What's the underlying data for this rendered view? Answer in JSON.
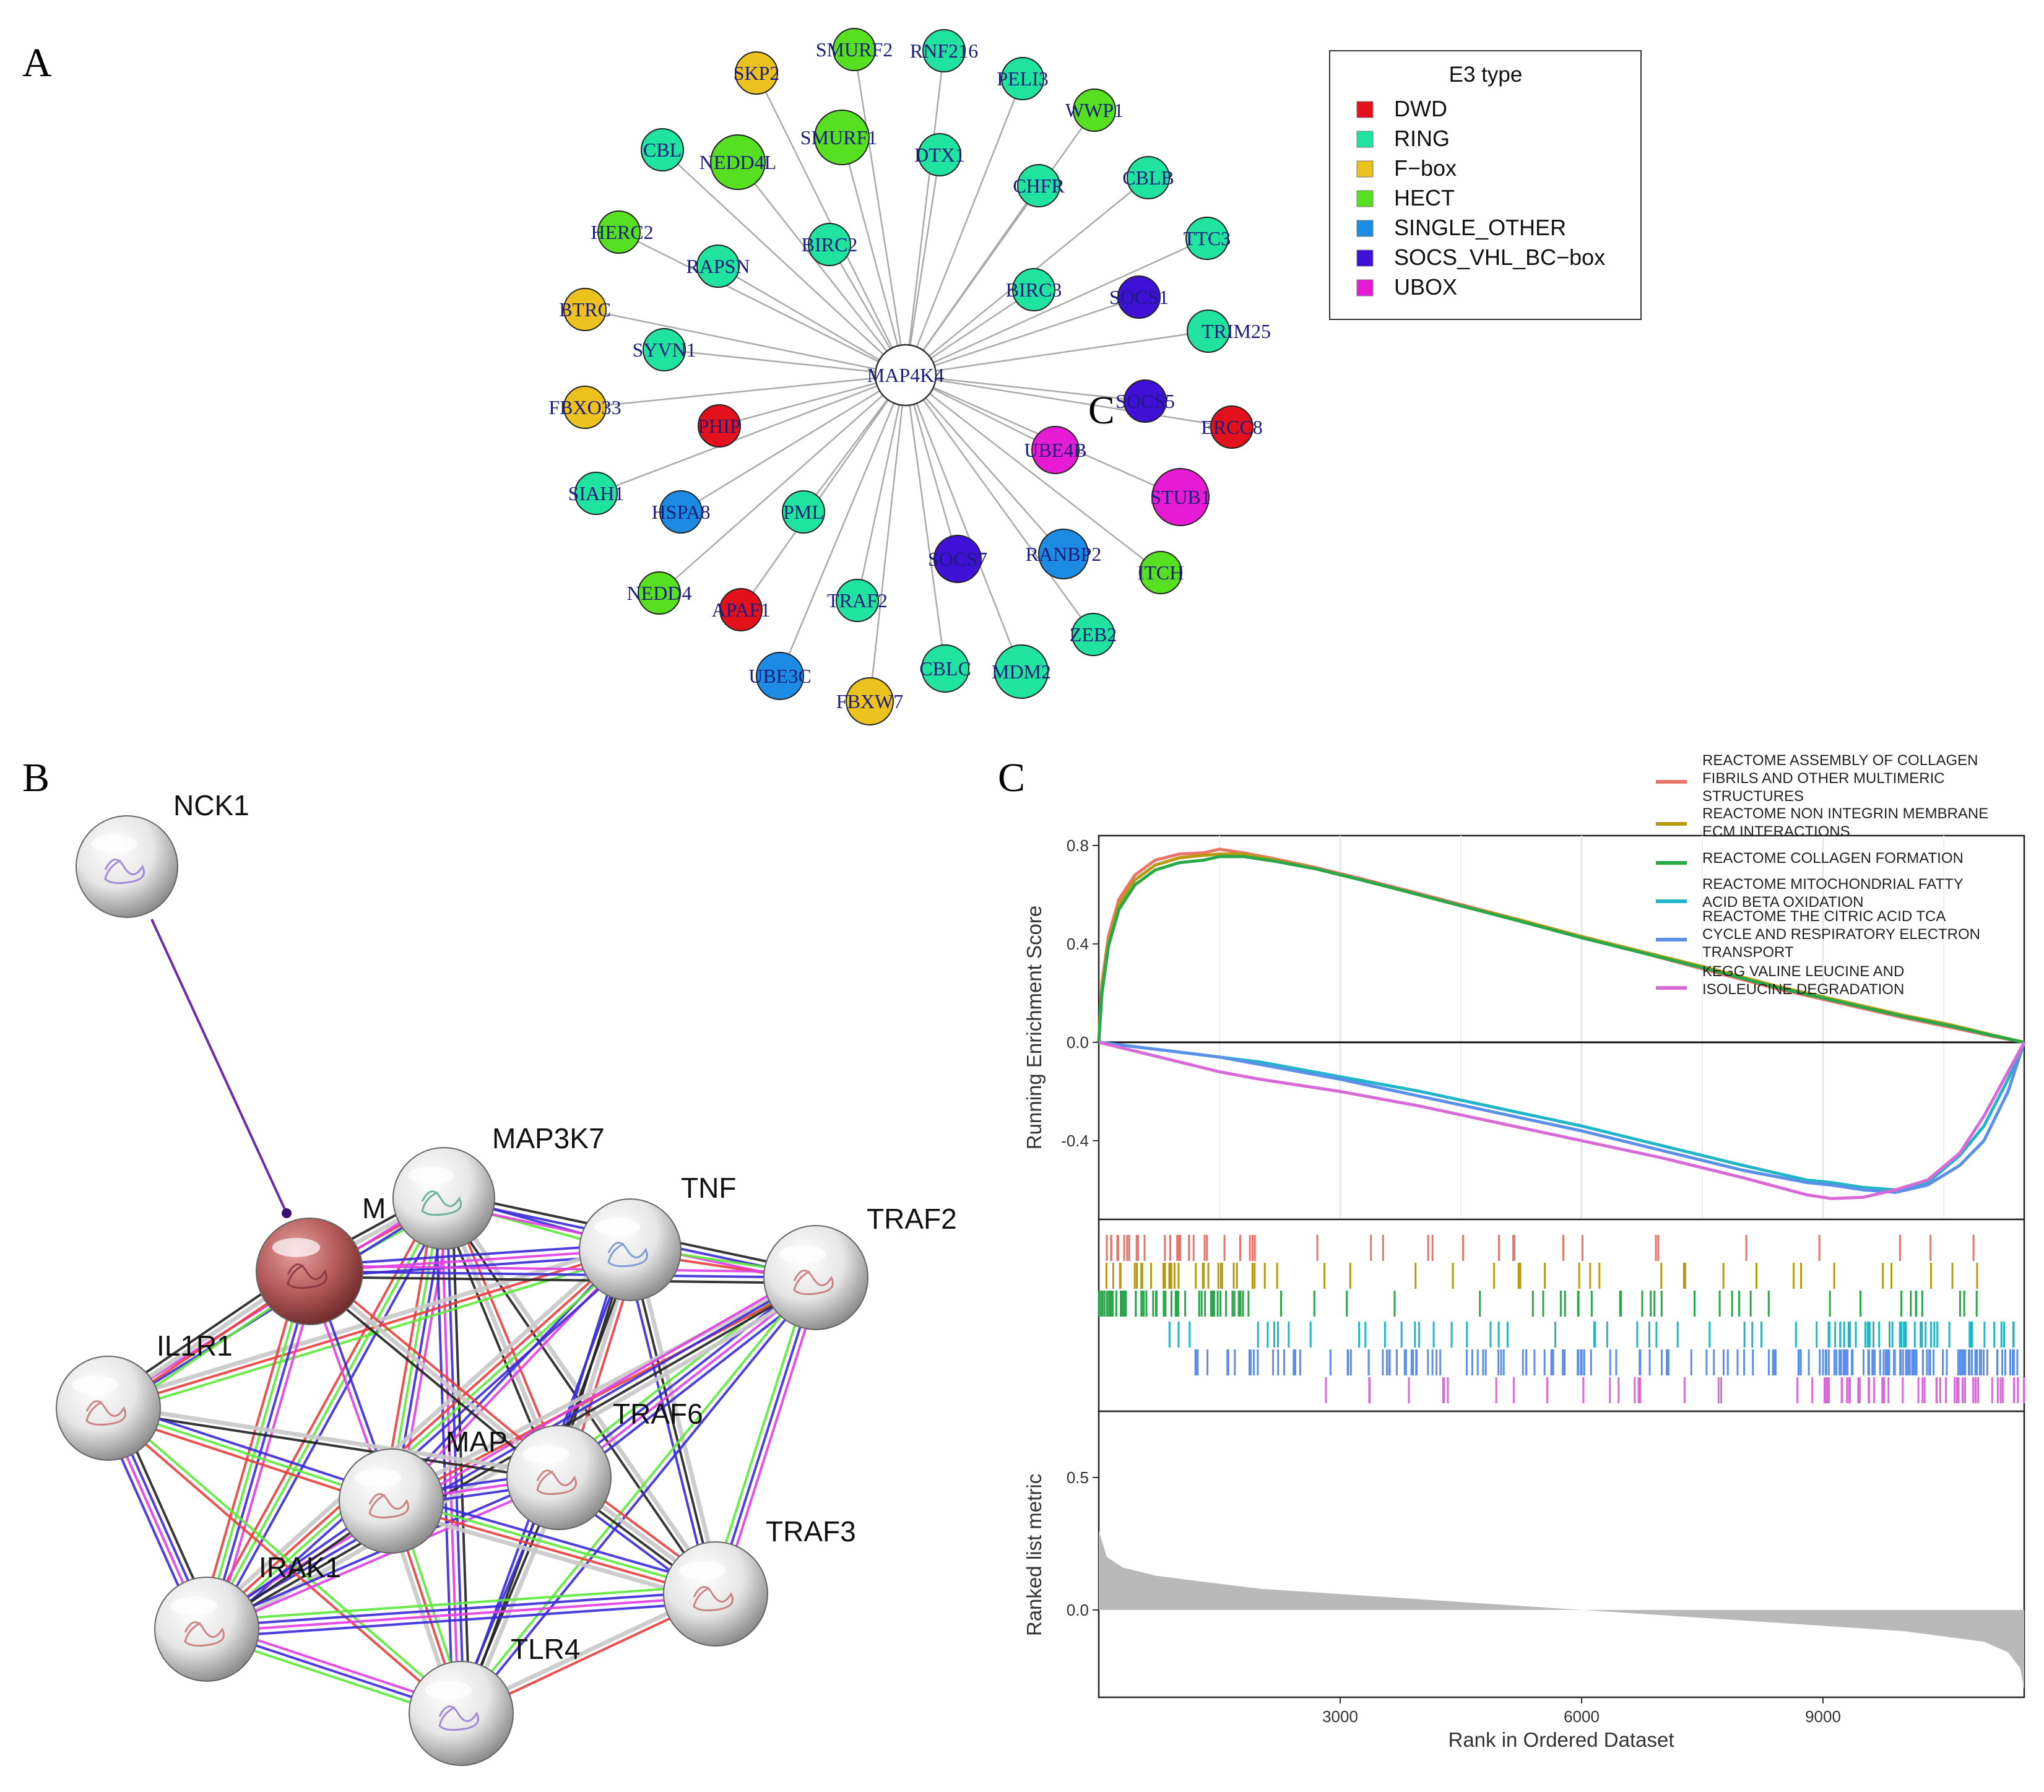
{
  "panel_labels": {
    "a": "A",
    "b": "B",
    "c": "C"
  },
  "panel_a": {
    "center": "MAP4K4",
    "legend": {
      "title": "E3 type",
      "items": [
        {
          "key": "DWD",
          "label": "DWD",
          "color": "#e3111c"
        },
        {
          "key": "RING",
          "label": "RING",
          "color": "#20e3a0"
        },
        {
          "key": "FBOX",
          "label": "F−box",
          "color": "#ecc21f"
        },
        {
          "key": "HECT",
          "label": "HECT",
          "color": "#57e021"
        },
        {
          "key": "SINGLE",
          "label": "SINGLE_OTHER",
          "color": "#1b8be3"
        },
        {
          "key": "SOCS",
          "label": "SOCS_VHL_BC−box",
          "color": "#3f10d6"
        },
        {
          "key": "UBOX",
          "label": "UBOX",
          "color": "#e61bd3"
        }
      ]
    },
    "stray_glyph": "C",
    "nodes": [
      {
        "label": "SMURF2",
        "type": "HECT"
      },
      {
        "label": "RNF216",
        "type": "RING"
      },
      {
        "label": "PELI3",
        "type": "RING"
      },
      {
        "label": "WWP1",
        "type": "HECT"
      },
      {
        "label": "SKP2",
        "type": "FBOX"
      },
      {
        "label": "SMURF1",
        "type": "HECT"
      },
      {
        "label": "CBL",
        "type": "RING"
      },
      {
        "label": "NEDD4L",
        "type": "HECT"
      },
      {
        "label": "DTX1",
        "type": "RING"
      },
      {
        "label": "CHFR",
        "type": "RING"
      },
      {
        "label": "CBLB",
        "type": "RING"
      },
      {
        "label": "HERC2",
        "type": "HECT"
      },
      {
        "label": "BIRC2",
        "type": "RING"
      },
      {
        "label": "TTC3",
        "type": "RING"
      },
      {
        "label": "RAPSN",
        "type": "RING"
      },
      {
        "label": "BIRC3",
        "type": "RING"
      },
      {
        "label": "SOCS1",
        "type": "SOCS"
      },
      {
        "label": "BTRC",
        "type": "FBOX"
      },
      {
        "label": "TRIM25",
        "type": "RING"
      },
      {
        "label": "SYVN1",
        "type": "RING"
      },
      {
        "label": "SOCS5",
        "type": "SOCS"
      },
      {
        "label": "FBXO33",
        "type": "FBOX"
      },
      {
        "label": "PHIP",
        "type": "DWD"
      },
      {
        "label": "ERCC8",
        "type": "DWD"
      },
      {
        "label": "UBE4B",
        "type": "UBOX"
      },
      {
        "label": "STUB1",
        "type": "UBOX"
      },
      {
        "label": "SIAH1",
        "type": "RING"
      },
      {
        "label": "HSPA8",
        "type": "SINGLE"
      },
      {
        "label": "PML",
        "type": "RING"
      },
      {
        "label": "SOCS7",
        "type": "SOCS"
      },
      {
        "label": "RANBP2",
        "type": "SINGLE"
      },
      {
        "label": "ITCH",
        "type": "HECT"
      },
      {
        "label": "NEDD4",
        "type": "HECT"
      },
      {
        "label": "APAF1",
        "type": "DWD"
      },
      {
        "label": "TRAF2",
        "type": "RING"
      },
      {
        "label": "ZEB2",
        "type": "RING"
      },
      {
        "label": "UBE3C",
        "type": "SINGLE"
      },
      {
        "label": "CBLC",
        "type": "RING"
      },
      {
        "label": "MDM2",
        "type": "RING"
      },
      {
        "label": "FBXW7",
        "type": "FBOX"
      }
    ]
  },
  "panel_b": {
    "nodes": [
      {
        "id": "NCK1",
        "label": "NCK1"
      },
      {
        "id": "MAP3K7",
        "label": "MAP3K7"
      },
      {
        "id": "TNF",
        "label": "TNF"
      },
      {
        "id": "TRAF2",
        "label": "TRAF2"
      },
      {
        "id": "MAP4K4",
        "label": "M"
      },
      {
        "id": "IL1R1",
        "label": "IL1R1"
      },
      {
        "id": "TRAF6",
        "label": "TRAF6"
      },
      {
        "id": "MAP2K",
        "label": "MAP"
      },
      {
        "id": "TRAF3",
        "label": "TRAF3"
      },
      {
        "id": "IRAK1",
        "label": "IRAK1"
      },
      {
        "id": "TLR4",
        "label": "TLR4"
      }
    ],
    "edge_colors": {
      "coexpression": "#222222",
      "binding": "#3a2bd8",
      "activation": "#5ee83a",
      "inhibition": "#e84040",
      "expression": "#e23ee0",
      "other": "#c8c8c8"
    }
  },
  "chart_data": {
    "type": "line",
    "title": "",
    "xlabel": "Rank in Ordered Dataset",
    "ylabel": "Running Enrichment Score",
    "ylabel_metric": "Ranked list metric",
    "xlim": [
      0,
      11500
    ],
    "ylim": [
      -0.72,
      0.84
    ],
    "metric_ylim": [
      -0.33,
      0.75
    ],
    "x_ticks": [
      3000,
      6000,
      9000
    ],
    "y_ticks": [
      0.8,
      0.4,
      0.0,
      -0.4
    ],
    "metric_ticks": [
      0.5,
      0.0
    ],
    "series": [
      {
        "name": "REACTOME ASSEMBLY OF COLLAGEN FIBRILS AND OTHER MULTIMERIC STRUCTURES",
        "legend_lines": [
          "REACTOME ASSEMBLY OF COLLAGEN",
          "FIBRILS AND OTHER MULTIMERIC",
          "STRUCTURES"
        ],
        "color": "#e8746a",
        "x": [
          0,
          40,
          120,
          250,
          450,
          700,
          1000,
          1300,
          1500,
          1800,
          2200,
          2700,
          3200,
          3800,
          4500,
          5200,
          6000,
          6800,
          7600,
          8400,
          9200,
          10000,
          10600,
          11100,
          11500
        ],
        "y": [
          0,
          0.24,
          0.43,
          0.58,
          0.68,
          0.74,
          0.765,
          0.77,
          0.785,
          0.77,
          0.745,
          0.71,
          0.67,
          0.62,
          0.56,
          0.5,
          0.43,
          0.36,
          0.29,
          0.22,
          0.16,
          0.1,
          0.06,
          0.025,
          0
        ]
      },
      {
        "name": "REACTOME NON INTEGRIN MEMBRANE ECM INTERACTIONS",
        "legend_lines": [
          "REACTOME NON INTEGRIN MEMBRANE",
          "ECM INTERACTIONS"
        ],
        "color": "#b89a10",
        "x": [
          0,
          40,
          120,
          250,
          450,
          700,
          1000,
          1300,
          1500,
          1800,
          2200,
          2700,
          3200,
          3800,
          4500,
          5200,
          6000,
          6800,
          7600,
          8400,
          9200,
          10000,
          10600,
          11100,
          11500
        ],
        "y": [
          0,
          0.22,
          0.41,
          0.56,
          0.66,
          0.72,
          0.75,
          0.76,
          0.765,
          0.765,
          0.74,
          0.705,
          0.665,
          0.615,
          0.555,
          0.5,
          0.43,
          0.365,
          0.3,
          0.23,
          0.17,
          0.11,
          0.07,
          0.03,
          0
        ]
      },
      {
        "name": "REACTOME COLLAGEN FORMATION",
        "legend_lines": [
          "REACTOME COLLAGEN FORMATION"
        ],
        "color": "#29a84a",
        "x": [
          0,
          40,
          120,
          250,
          450,
          700,
          1000,
          1300,
          1500,
          1800,
          2200,
          2700,
          3200,
          3800,
          4500,
          5200,
          6000,
          6800,
          7600,
          8400,
          9200,
          10000,
          10600,
          11100,
          11500
        ],
        "y": [
          0,
          0.2,
          0.39,
          0.54,
          0.64,
          0.7,
          0.73,
          0.74,
          0.755,
          0.755,
          0.735,
          0.705,
          0.665,
          0.615,
          0.555,
          0.495,
          0.425,
          0.36,
          0.295,
          0.225,
          0.165,
          0.105,
          0.065,
          0.028,
          0
        ]
      },
      {
        "name": "REACTOME MITOCHONDRIAL FATTY ACID BETA OXIDATION",
        "legend_lines": [
          "REACTOME MITOCHONDRIAL FATTY",
          "ACID BETA OXIDATION"
        ],
        "color": "#22b5c8",
        "x": [
          0,
          500,
          1000,
          1500,
          2000,
          3000,
          4000,
          5000,
          6000,
          7000,
          8000,
          8800,
          9100,
          9500,
          9900,
          10300,
          10700,
          11000,
          11300,
          11500
        ],
        "y": [
          0,
          -0.02,
          -0.04,
          -0.06,
          -0.08,
          -0.14,
          -0.2,
          -0.27,
          -0.34,
          -0.42,
          -0.5,
          -0.56,
          -0.57,
          -0.59,
          -0.6,
          -0.57,
          -0.46,
          -0.34,
          -0.15,
          0
        ]
      },
      {
        "name": "REACTOME THE CITRIC ACID TCA CYCLE AND RESPIRATORY ELECTRON TRANSPORT",
        "legend_lines": [
          "REACTOME THE CITRIC ACID TCA",
          "CYCLE AND RESPIRATORY ELECTRON",
          "TRANSPORT"
        ],
        "color": "#5b8fe8",
        "x": [
          0,
          500,
          1000,
          1500,
          2000,
          3000,
          4000,
          5000,
          6000,
          7000,
          8000,
          8800,
          9100,
          9500,
          9900,
          10300,
          10700,
          11000,
          11300,
          11500
        ],
        "y": [
          0,
          -0.02,
          -0.04,
          -0.06,
          -0.09,
          -0.15,
          -0.22,
          -0.29,
          -0.36,
          -0.44,
          -0.52,
          -0.57,
          -0.58,
          -0.6,
          -0.61,
          -0.58,
          -0.5,
          -0.4,
          -0.2,
          0
        ]
      },
      {
        "name": "KEGG VALINE LEUCINE AND ISOLEUCINE DEGRADATION",
        "legend_lines": [
          "KEGG VALINE LEUCINE AND",
          "ISOLEUCINE DEGRADATION"
        ],
        "color": "#d86ad8",
        "x": [
          0,
          500,
          1000,
          1500,
          2000,
          3000,
          4000,
          5000,
          6000,
          7000,
          8000,
          8800,
          9100,
          9500,
          9900,
          10300,
          10700,
          11000,
          11300,
          11500
        ],
        "y": [
          0,
          -0.04,
          -0.08,
          -0.12,
          -0.15,
          -0.2,
          -0.26,
          -0.33,
          -0.4,
          -0.47,
          -0.55,
          -0.62,
          -0.635,
          -0.63,
          -0.6,
          -0.56,
          -0.45,
          -0.3,
          -0.12,
          0
        ]
      }
    ],
    "ranked_metric": {
      "x": [
        0,
        100,
        300,
        700,
        1200,
        2000,
        3000,
        4000,
        5000,
        6000,
        7000,
        8000,
        9000,
        10000,
        10500,
        11000,
        11300,
        11450,
        11500
      ],
      "y": [
        0.3,
        0.2,
        0.16,
        0.13,
        0.11,
        0.08,
        0.06,
        0.04,
        0.02,
        0.0,
        -0.02,
        -0.04,
        -0.06,
        -0.08,
        -0.1,
        -0.12,
        -0.16,
        -0.22,
        -0.3
      ]
    }
  }
}
